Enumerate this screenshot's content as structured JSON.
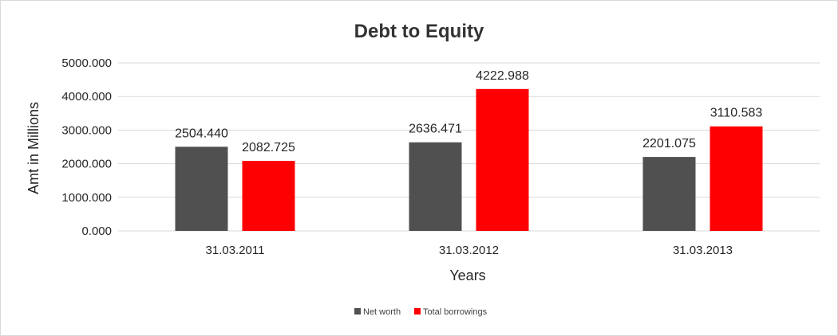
{
  "chart_data": {
    "type": "bar",
    "title": "Debt to Equity",
    "xlabel": "Years",
    "ylabel": "Amt in Millions",
    "categories": [
      "31.03.2011",
      "31.03.2012",
      "31.03.2013"
    ],
    "series": [
      {
        "name": "Net worth",
        "color": "#505050",
        "values": [
          2504.44,
          2636.471,
          2201.075
        ]
      },
      {
        "name": "Total borrowings",
        "color": "#ff0000",
        "values": [
          2082.725,
          4222.988,
          3110.583
        ]
      }
    ],
    "value_labels": [
      [
        "2504.440",
        "2636.471",
        "2201.075"
      ],
      [
        "2082.725",
        "4222.988",
        "3110.583"
      ]
    ],
    "ylim": [
      0,
      5000
    ],
    "yticks": [
      "0.000",
      "1000.000",
      "2000.000",
      "3000.000",
      "4000.000",
      "5000.000"
    ],
    "grid": true,
    "legend_position": "bottom"
  }
}
